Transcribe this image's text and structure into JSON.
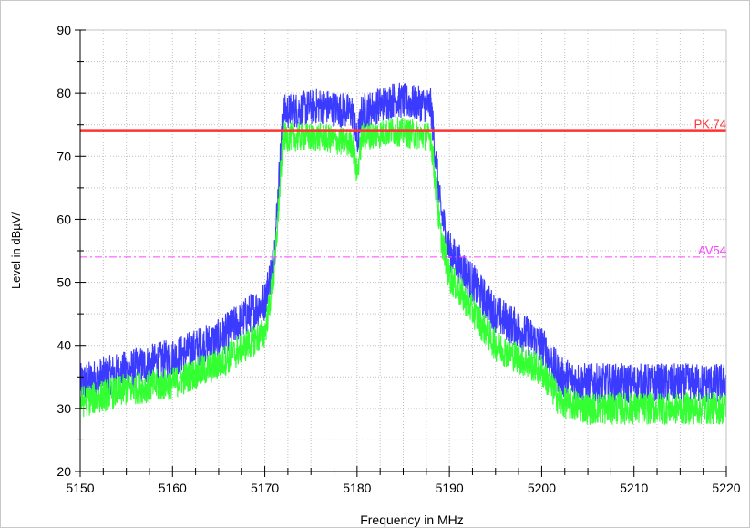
{
  "chart_data": {
    "type": "line",
    "title": "",
    "xlabel": "Frequency in MHz",
    "ylabel": "Level in dBµV/",
    "xlim": [
      5150,
      5220
    ],
    "ylim": [
      20,
      90
    ],
    "x_ticks": [
      5150,
      5160,
      5170,
      5180,
      5190,
      5200,
      5210,
      5220
    ],
    "y_ticks": [
      20,
      30,
      40,
      50,
      60,
      70,
      80,
      90
    ],
    "x_tick_labels": [
      "5150",
      "5160",
      "5170",
      "5180",
      "5190",
      "5200",
      "5210",
      "5220"
    ],
    "y_tick_labels": [
      "20",
      "30",
      "40",
      "50",
      "60",
      "70",
      "80",
      "90"
    ],
    "grid": true,
    "series": [
      {
        "color": "#3b3bff",
        "kind": "peak-trace",
        "x": [
          5150,
          5155,
          5160,
          5165,
          5170,
          5171,
          5172,
          5176,
          5179.5,
          5180,
          5180.5,
          5184,
          5188,
          5189,
          5190,
          5195,
          5200,
          5202,
          5205,
          5210,
          5215,
          5220
        ],
        "values": [
          34,
          36,
          38,
          41,
          47,
          54,
          77,
          78,
          77,
          72,
          77,
          79,
          78,
          62,
          55,
          45,
          40,
          35,
          34,
          34,
          34,
          34
        ]
      },
      {
        "color": "#33ff33",
        "kind": "average-trace",
        "x": [
          5150,
          5155,
          5160,
          5165,
          5170,
          5171,
          5172,
          5176,
          5179.5,
          5180,
          5180.5,
          5184,
          5188,
          5189,
          5190,
          5195,
          5200,
          5202,
          5205,
          5210,
          5215,
          5220
        ],
        "values": [
          31,
          33,
          34,
          37,
          42,
          51,
          73,
          73,
          72,
          67,
          73,
          74,
          73,
          58,
          51,
          40,
          36,
          31,
          30,
          30,
          30,
          30
        ]
      }
    ],
    "limit_lines": [
      {
        "label": "PK.74",
        "value": 74,
        "color": "#ff3333",
        "style": "solid"
      },
      {
        "label": "AV54",
        "value": 54,
        "color": "#ff44ff",
        "style": "dash-dot"
      }
    ]
  }
}
